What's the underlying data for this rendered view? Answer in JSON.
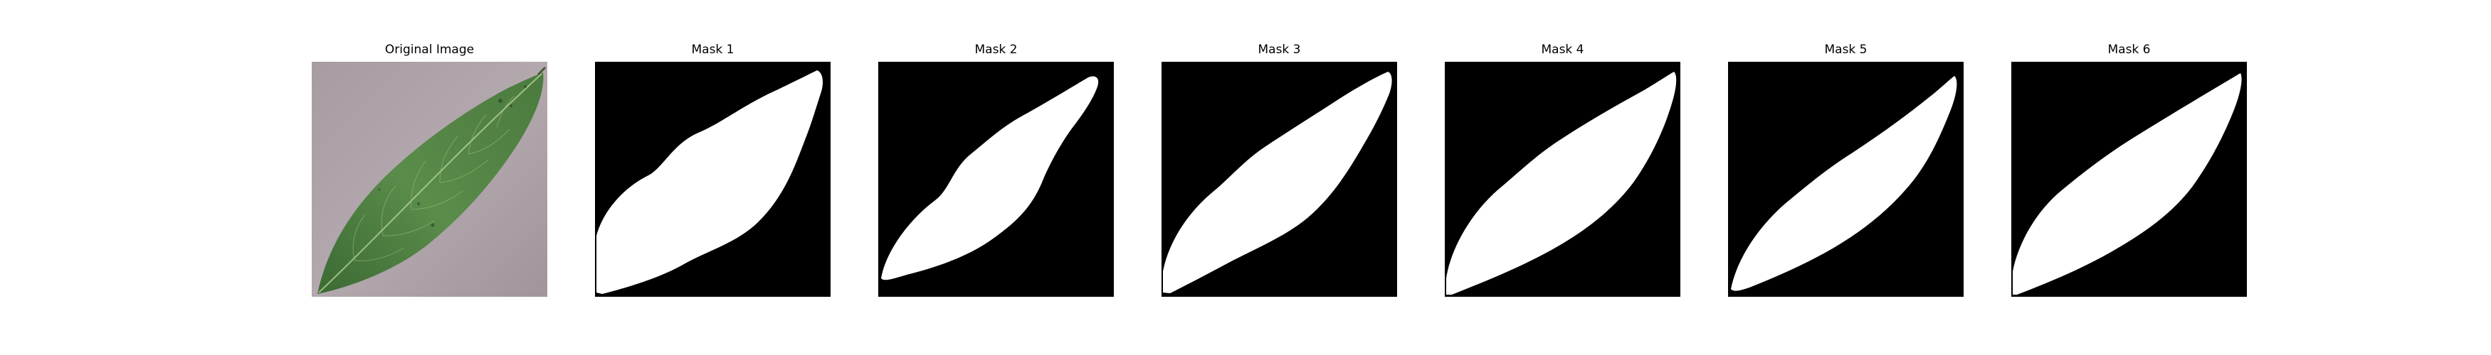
{
  "panels": [
    {
      "title": "Original Image",
      "kind": "photo",
      "subject": "leaf-photo"
    },
    {
      "title": "Mask 1",
      "kind": "mask"
    },
    {
      "title": "Mask 2",
      "kind": "mask"
    },
    {
      "title": "Mask 3",
      "kind": "mask"
    },
    {
      "title": "Mask 4",
      "kind": "mask"
    },
    {
      "title": "Mask 5",
      "kind": "mask"
    },
    {
      "title": "Mask 6",
      "kind": "mask"
    }
  ],
  "colors": {
    "background": "#ffffff",
    "mask_background": "#000000",
    "mask_foreground": "#ffffff",
    "photo_background": "#a89ea3",
    "leaf_dark": "#3f6e37",
    "leaf_light": "#5f9150",
    "leaf_vein": "#b7d39a"
  }
}
